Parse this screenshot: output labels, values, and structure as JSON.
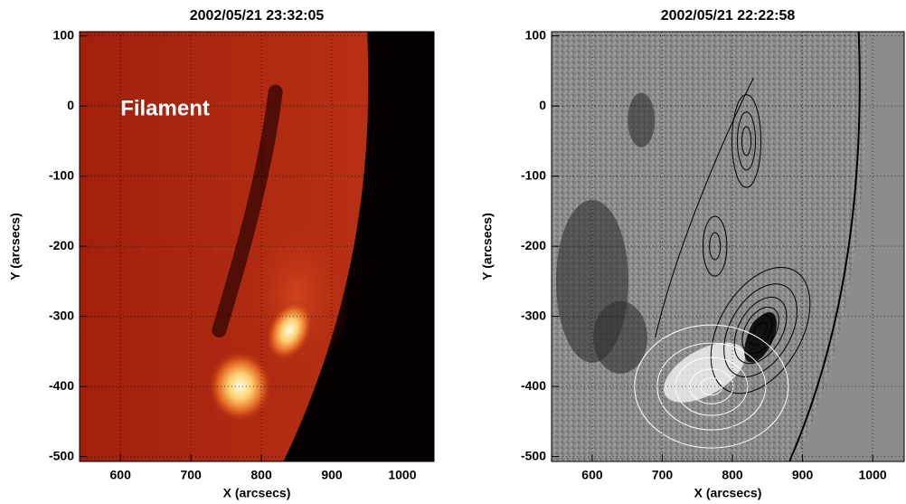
{
  "chart_data": [
    {
      "type": "image",
      "title": "2002/05/21 23:32:05",
      "xlabel": "X (arcsecs)",
      "ylabel": "Y (arcsecs)",
      "annotation": "Filament",
      "xlim": [
        542,
        1045
      ],
      "ylim": [
        -507,
        106
      ],
      "xticks": [
        600,
        700,
        800,
        900,
        1000
      ],
      "yticks": [
        100,
        0,
        -100,
        -200,
        -300,
        -400,
        -500
      ]
    },
    {
      "type": "image",
      "title": "2002/05/21 22:22:58",
      "xlabel": "X (arcsecs)",
      "ylabel": "Y (arcsecs)",
      "xlim": [
        542,
        1045
      ],
      "ylim": [
        -507,
        106
      ],
      "xticks": [
        600,
        700,
        800,
        900,
        1000
      ],
      "yticks": [
        100,
        0,
        -100,
        -200,
        -300,
        -400,
        -500
      ]
    }
  ]
}
